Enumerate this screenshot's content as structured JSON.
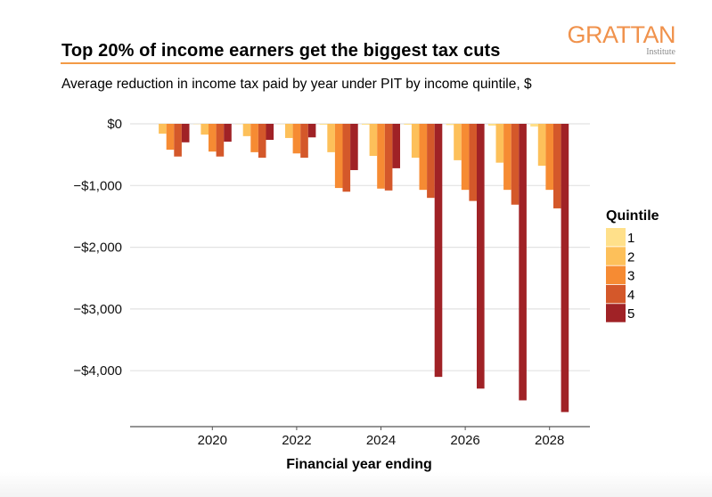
{
  "header": {
    "title": "Top 20% of income earners get the biggest tax cuts",
    "subtitle": "Average reduction in income tax paid by year under PIT by income quintile, $",
    "logo_main": "GRATTAN",
    "logo_sub": "Institute"
  },
  "colors": {
    "accent": "#F39A45",
    "gridline": "#e2e2e2",
    "axis": "#555555"
  },
  "chart_data": {
    "type": "bar",
    "title": "Top 20% of income earners get the biggest tax cuts",
    "subtitle": "Average reduction in income tax paid by year under PIT by income quintile, $",
    "xlabel": "Financial year ending",
    "ylabel": "",
    "categories": [
      2019,
      2020,
      2021,
      2022,
      2023,
      2024,
      2025,
      2026,
      2027,
      2028
    ],
    "x_ticks": [
      2020,
      2022,
      2024,
      2026,
      2028
    ],
    "x_tick_labels": [
      "2020",
      "2022",
      "2024",
      "2026",
      "2028"
    ],
    "y_ticks": [
      0,
      -1000,
      -2000,
      -3000,
      -4000
    ],
    "y_tick_labels": [
      "$0",
      "−$1,000",
      "−$2,000",
      "−$3,000",
      "−$4,000"
    ],
    "ylim": [
      -4800,
      0
    ],
    "grid": true,
    "legend": {
      "title": "Quintile",
      "placement": "right"
    },
    "series": [
      {
        "name": "1",
        "color": "#FFE08A",
        "values": [
          0,
          -5,
          -5,
          -5,
          -15,
          -15,
          -15,
          -20,
          -30,
          -45
        ]
      },
      {
        "name": "2",
        "color": "#FDC05A",
        "values": [
          -160,
          -175,
          -200,
          -230,
          -460,
          -520,
          -550,
          -590,
          -630,
          -680
        ]
      },
      {
        "name": "3",
        "color": "#F68B33",
        "values": [
          -420,
          -450,
          -460,
          -480,
          -1040,
          -1050,
          -1070,
          -1070,
          -1070,
          -1070
        ]
      },
      {
        "name": "4",
        "color": "#D4582A",
        "values": [
          -530,
          -530,
          -550,
          -550,
          -1100,
          -1080,
          -1200,
          -1250,
          -1310,
          -1370
        ]
      },
      {
        "name": "5",
        "color": "#A02226",
        "values": [
          -300,
          -290,
          -260,
          -220,
          -750,
          -720,
          -4100,
          -4290,
          -4480,
          -4670
        ]
      }
    ]
  }
}
